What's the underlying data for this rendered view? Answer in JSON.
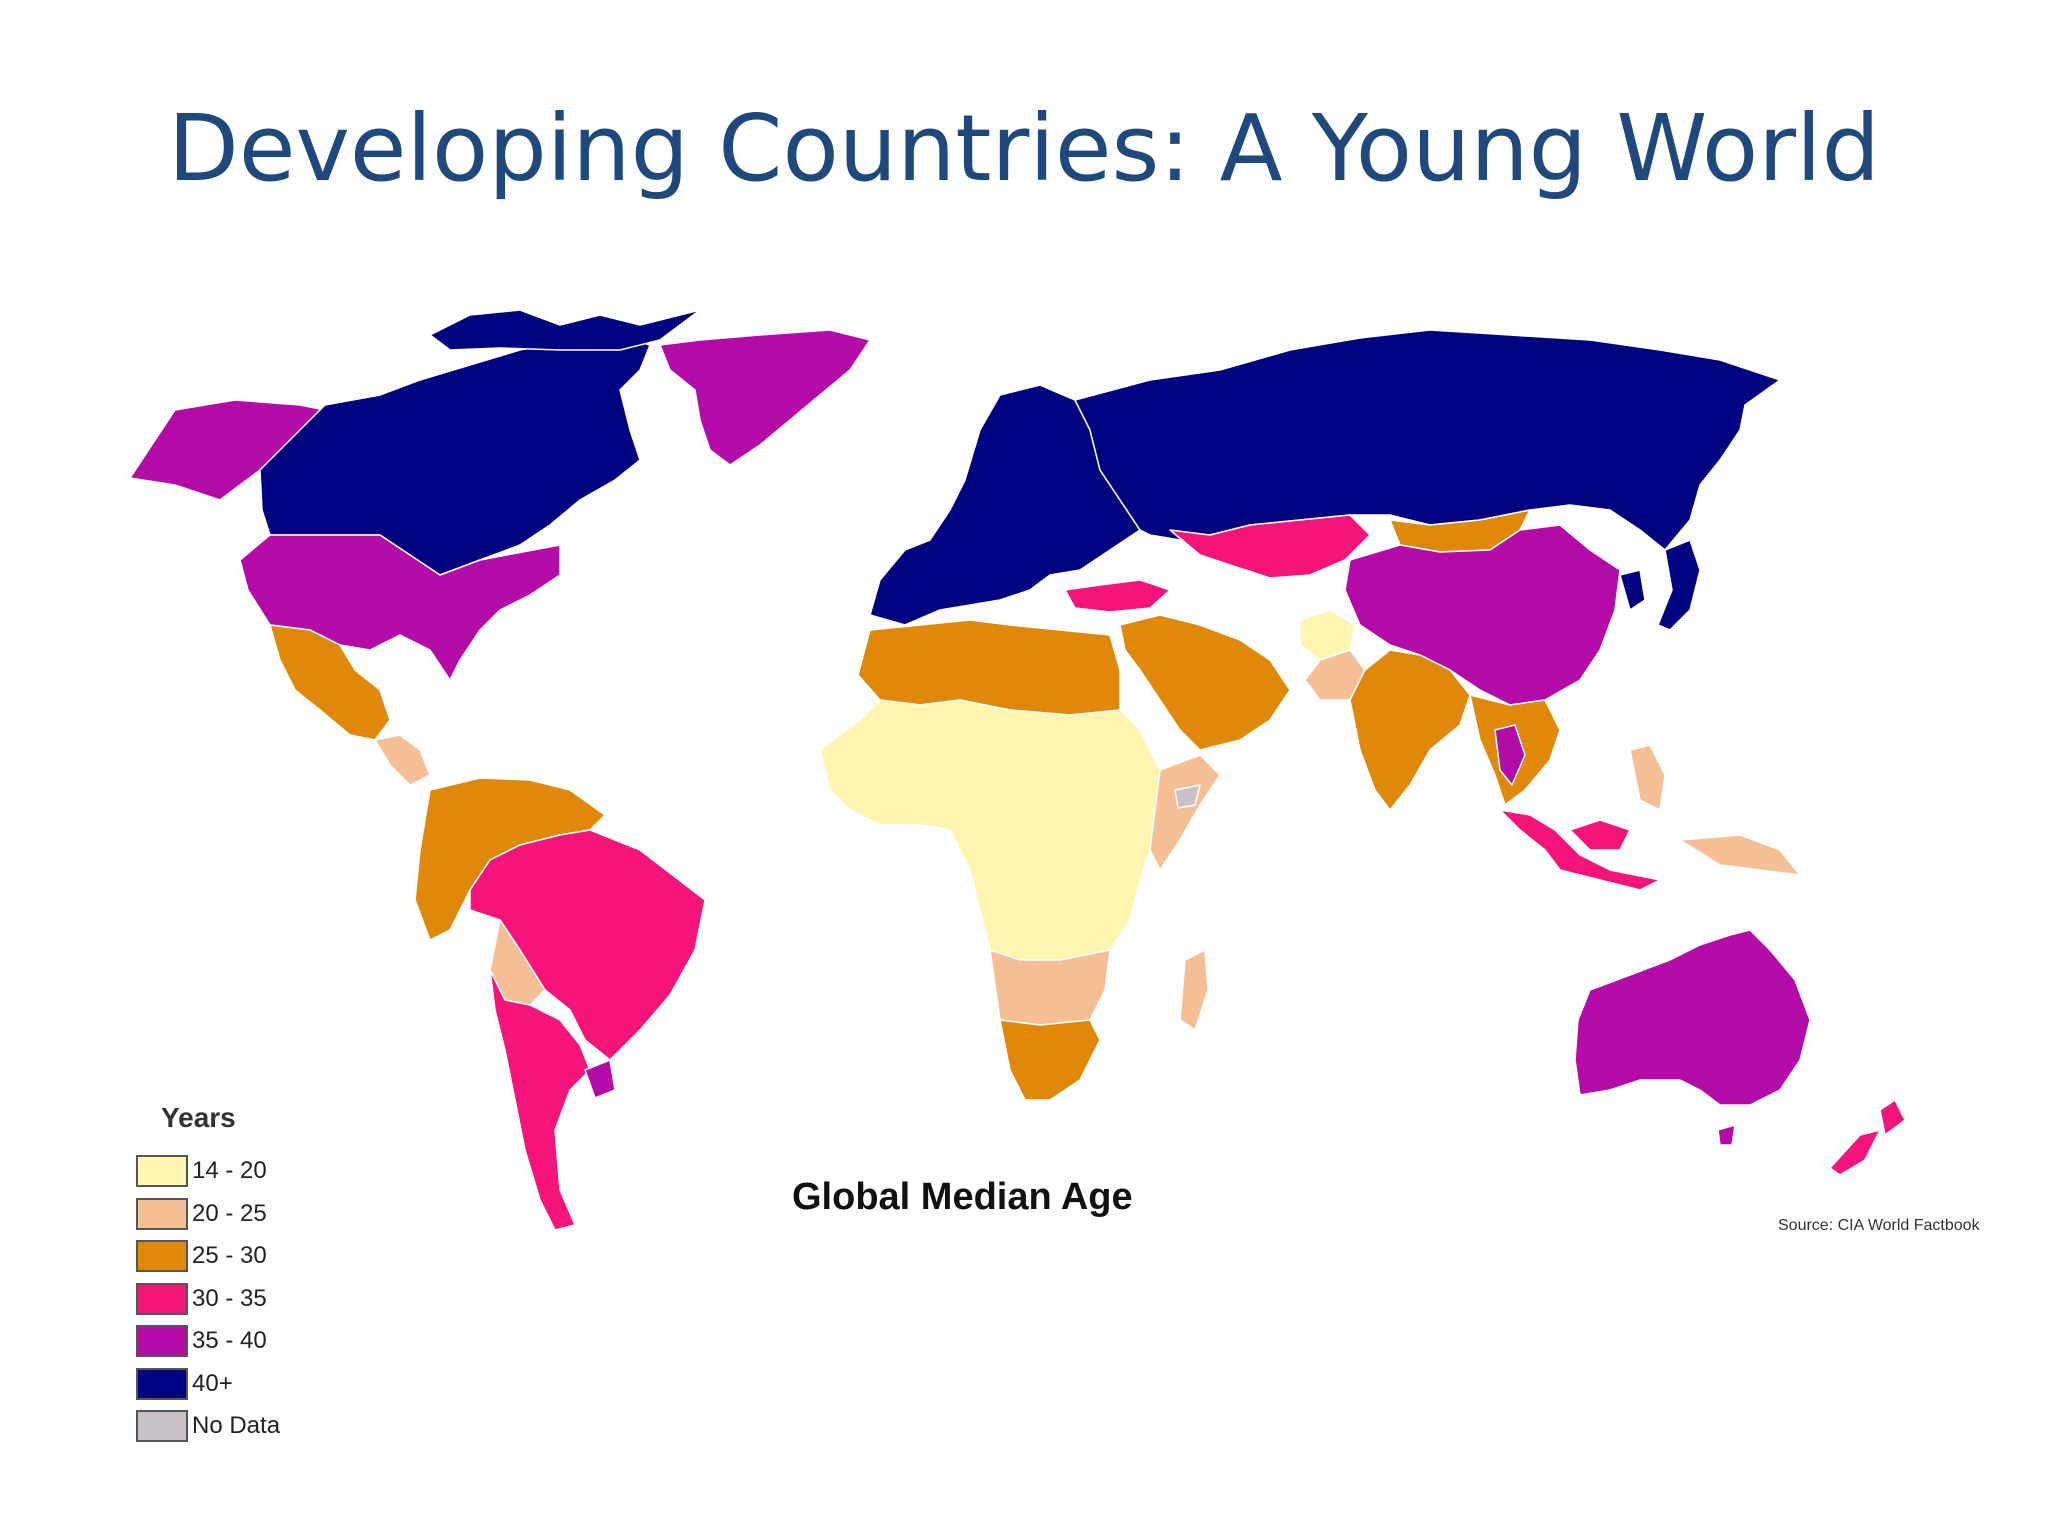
{
  "slide": {
    "title": "Developing Countries: A Young World"
  },
  "map": {
    "caption": "Global Median Age",
    "source": "Source: CIA World Factbook",
    "legend": {
      "title": "Years",
      "items": [
        {
          "label": "14 - 20",
          "color": "#fdf5b0"
        },
        {
          "label": "20 - 25",
          "color": "#f5bf96"
        },
        {
          "label": "25 - 30",
          "color": "#e0880a"
        },
        {
          "label": "30 - 35",
          "color": "#f5147a"
        },
        {
          "label": "35 - 40",
          "color": "#b40aa8"
        },
        {
          "label": "40+",
          "color": "#00037f"
        },
        {
          "label": "No Data",
          "color": "#c8c2c8"
        }
      ]
    },
    "regions": [
      {
        "name": "Canada",
        "category": "40+"
      },
      {
        "name": "Alaska",
        "category": "35 - 40"
      },
      {
        "name": "United States",
        "category": "35 - 40"
      },
      {
        "name": "Greenland",
        "category": "35 - 40"
      },
      {
        "name": "Mexico",
        "category": "25 - 30"
      },
      {
        "name": "Central America",
        "category": "20 - 25"
      },
      {
        "name": "Northern South America",
        "category": "25 - 30"
      },
      {
        "name": "Brazil",
        "category": "30 - 35"
      },
      {
        "name": "Bolivia",
        "category": "20 - 25"
      },
      {
        "name": "Argentina / Chile",
        "category": "30 - 35"
      },
      {
        "name": "Uruguay",
        "category": "35 - 40"
      },
      {
        "name": "Europe",
        "category": "40+"
      },
      {
        "name": "Russia",
        "category": "40+"
      },
      {
        "name": "Turkey",
        "category": "30 - 35"
      },
      {
        "name": "Kazakhstan",
        "category": "30 - 35"
      },
      {
        "name": "Mongolia",
        "category": "25 - 30"
      },
      {
        "name": "China",
        "category": "35 - 40"
      },
      {
        "name": "Japan",
        "category": "40+"
      },
      {
        "name": "Korea",
        "category": "40+"
      },
      {
        "name": "North Africa",
        "category": "25 - 30"
      },
      {
        "name": "Middle East",
        "category": "25 - 30"
      },
      {
        "name": "Afghanistan",
        "category": "14 - 20"
      },
      {
        "name": "Pakistan",
        "category": "20 - 25"
      },
      {
        "name": "India",
        "category": "25 - 30"
      },
      {
        "name": "Southeast Asia",
        "category": "25 - 30"
      },
      {
        "name": "Thailand",
        "category": "35 - 40"
      },
      {
        "name": "Indonesia / Malaysia",
        "category": "30 - 35"
      },
      {
        "name": "Philippines",
        "category": "20 - 25"
      },
      {
        "name": "Papua New Guinea",
        "category": "20 - 25"
      },
      {
        "name": "Sub-Saharan Africa",
        "category": "14 - 20"
      },
      {
        "name": "East Africa",
        "category": "20 - 25"
      },
      {
        "name": "Southern Africa",
        "category": "20 - 25"
      },
      {
        "name": "South Africa",
        "category": "25 - 30"
      },
      {
        "name": "Madagascar",
        "category": "20 - 25"
      },
      {
        "name": "Somalia",
        "category": "No Data"
      },
      {
        "name": "Australia",
        "category": "35 - 40"
      },
      {
        "name": "New Zealand",
        "category": "30 - 35"
      }
    ]
  }
}
